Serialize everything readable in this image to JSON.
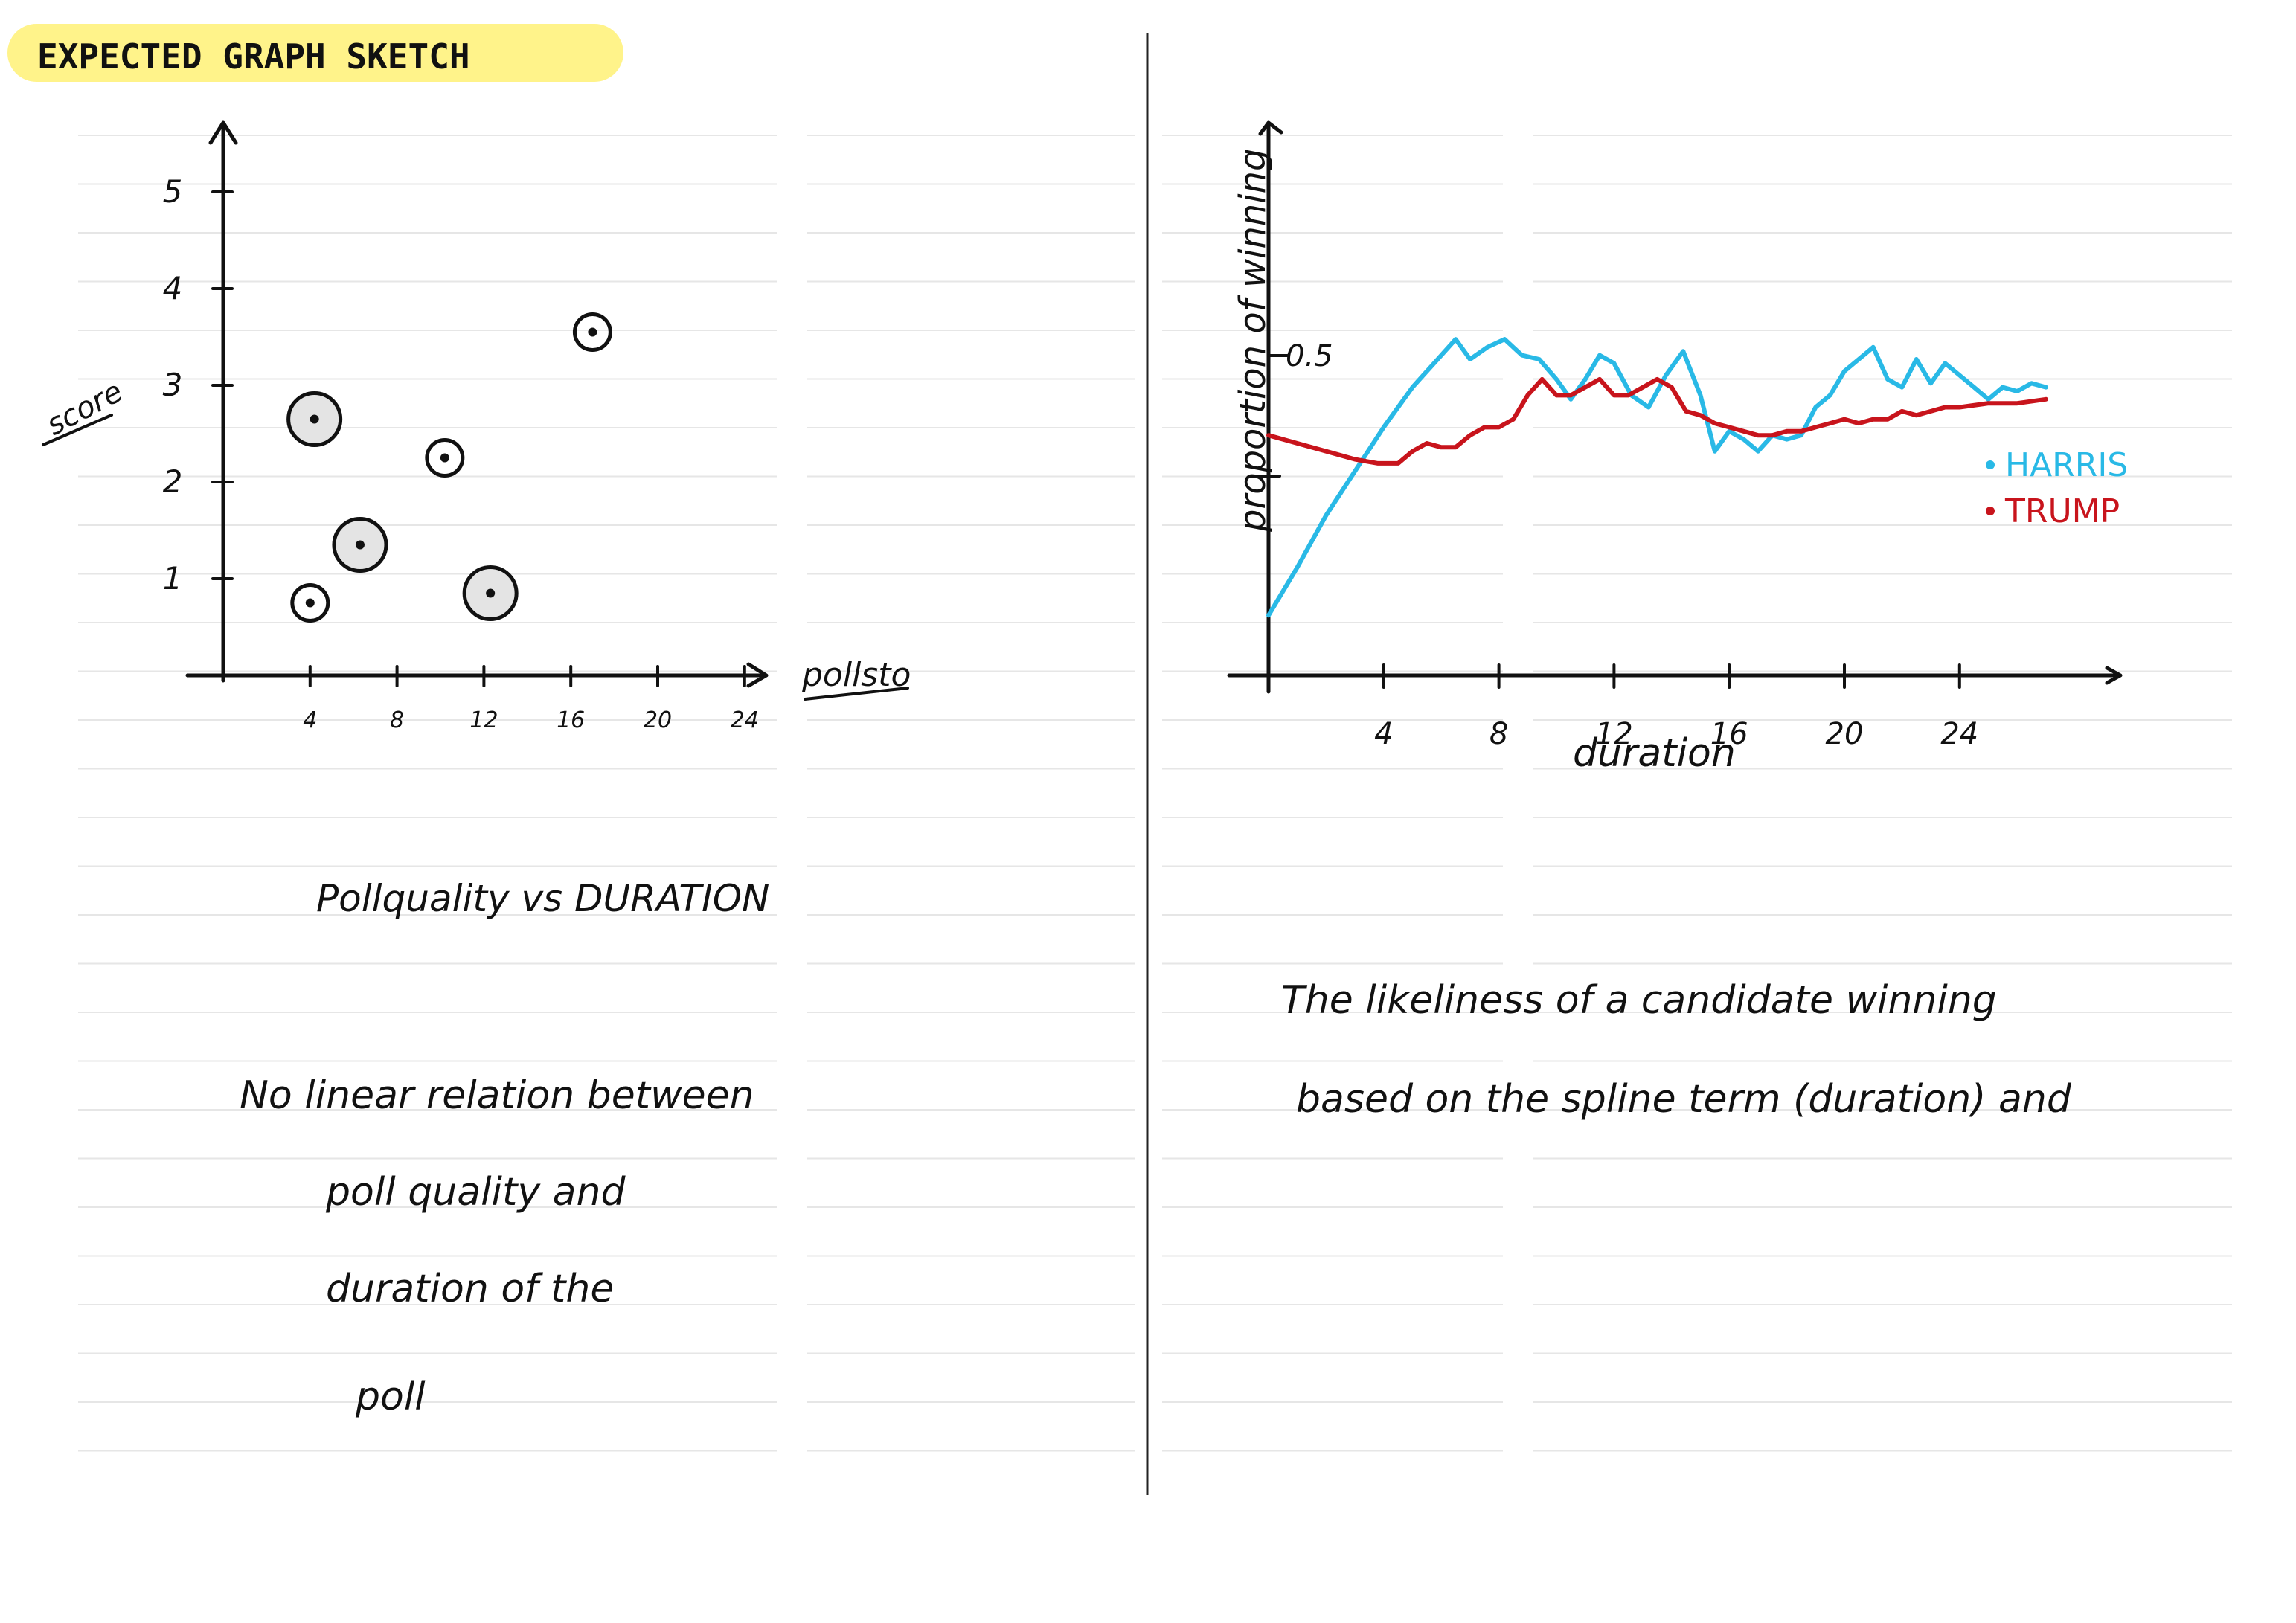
{
  "header": {
    "title": "EXPECTED GRAPH SKETCH",
    "highlight_color": "#fff38a"
  },
  "left_panel": {
    "caption": "Pollquality vs DURATION",
    "notes": [
      "No linear relation between",
      "poll quality and",
      "duration of the",
      "poll"
    ]
  },
  "right_panel": {
    "notes": [
      "The likeliness of a candidate winning",
      "based on the spline term (duration) and"
    ]
  },
  "chart_data": [
    {
      "type": "scatter",
      "title": "",
      "xlabel": "pollsto",
      "ylabel": "score",
      "x_ticks": [
        4,
        8,
        12,
        16,
        20,
        24
      ],
      "x_tick_labels": [
        "4",
        "8",
        "12",
        "16",
        "20",
        "24"
      ],
      "y_ticks": [
        1,
        2,
        3,
        4,
        5
      ],
      "y_tick_labels": [
        "1",
        "2",
        "3",
        "4",
        "5"
      ],
      "xlim": [
        0,
        25
      ],
      "ylim": [
        0,
        5.5
      ],
      "grid": false,
      "points": [
        {
          "x": 4.2,
          "y": 2.65,
          "shaded": true
        },
        {
          "x": 4.0,
          "y": 0.75,
          "shaded": false
        },
        {
          "x": 6.3,
          "y": 1.35,
          "shaded": true
        },
        {
          "x": 10.2,
          "y": 2.25,
          "shaded": false
        },
        {
          "x": 12.3,
          "y": 0.85,
          "shaded": true
        },
        {
          "x": 17.0,
          "y": 3.55,
          "shaded": false
        }
      ]
    },
    {
      "type": "line",
      "title": "",
      "xlabel": "duration",
      "ylabel": "proportion of winning",
      "x_ticks": [
        4,
        8,
        12,
        16,
        20,
        24
      ],
      "x_tick_labels": [
        "4",
        "8",
        "12",
        "16",
        "20",
        "24"
      ],
      "y_tick_labels": [
        "0.5"
      ],
      "xlim": [
        0,
        27
      ],
      "ylim": [
        0,
        1.1
      ],
      "legend_position": "right",
      "series": [
        {
          "name": "HARRIS",
          "color": "#29b9e6",
          "x": [
            0,
            1,
            2,
            3,
            4,
            5,
            6,
            6.5,
            7,
            7.6,
            8.2,
            8.8,
            9.4,
            10,
            10.5,
            11,
            11.5,
            12,
            12.6,
            13.2,
            13.8,
            14.4,
            15,
            15.5,
            16,
            16.5,
            17,
            17.5,
            18,
            18.5,
            19,
            19.5,
            20,
            20.5,
            21,
            21.5,
            22,
            22.5,
            23,
            23.5,
            24,
            24.5,
            25,
            25.5,
            26,
            26.5,
            27
          ],
          "y": [
            0.15,
            0.27,
            0.4,
            0.51,
            0.62,
            0.72,
            0.8,
            0.84,
            0.79,
            0.82,
            0.84,
            0.8,
            0.79,
            0.74,
            0.69,
            0.74,
            0.8,
            0.78,
            0.7,
            0.67,
            0.75,
            0.81,
            0.7,
            0.56,
            0.61,
            0.59,
            0.56,
            0.6,
            0.59,
            0.6,
            0.67,
            0.7,
            0.76,
            0.79,
            0.82,
            0.74,
            0.72,
            0.79,
            0.73,
            0.78,
            0.75,
            0.72,
            0.69,
            0.72,
            0.71,
            0.73,
            0.72
          ]
        },
        {
          "name": "TRUMP",
          "color": "#c8141c",
          "x": [
            0,
            1,
            2,
            3,
            3.8,
            4.5,
            5,
            5.5,
            6,
            6.5,
            7,
            7.5,
            8,
            8.5,
            9,
            9.5,
            10,
            10.5,
            11,
            11.5,
            12,
            12.5,
            13,
            13.5,
            14,
            14.5,
            15,
            15.5,
            16,
            16.5,
            17,
            17.5,
            18,
            18.5,
            19,
            19.5,
            20,
            20.5,
            21,
            21.5,
            22,
            22.5,
            23,
            23.5,
            24,
            25,
            26,
            27
          ],
          "y": [
            0.6,
            0.58,
            0.56,
            0.54,
            0.53,
            0.53,
            0.56,
            0.58,
            0.57,
            0.57,
            0.6,
            0.62,
            0.62,
            0.64,
            0.7,
            0.74,
            0.7,
            0.7,
            0.72,
            0.74,
            0.7,
            0.7,
            0.72,
            0.74,
            0.72,
            0.66,
            0.65,
            0.63,
            0.62,
            0.61,
            0.6,
            0.6,
            0.61,
            0.61,
            0.62,
            0.63,
            0.64,
            0.63,
            0.64,
            0.64,
            0.66,
            0.65,
            0.66,
            0.67,
            0.67,
            0.68,
            0.68,
            0.69
          ]
        }
      ]
    }
  ]
}
